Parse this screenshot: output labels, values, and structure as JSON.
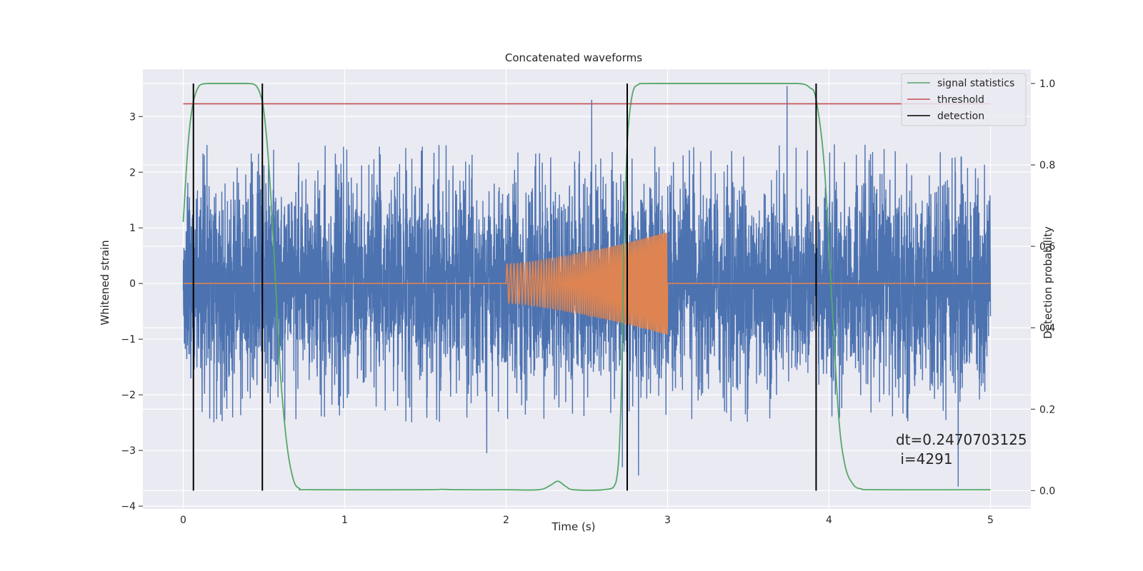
{
  "chart_data": {
    "type": "line",
    "title": "Concatenated waveforms",
    "xlabel": "Time (s)",
    "ylabel": "Whitened strain",
    "y2label": "Detection probability",
    "xlim": [
      -0.25,
      5.25
    ],
    "ylim": [
      -4.05,
      3.85
    ],
    "y2lim": [
      -0.045,
      1.035
    ],
    "x_ticks": [
      0,
      1,
      2,
      3,
      4,
      5
    ],
    "y_ticks": [
      -4,
      -3,
      -2,
      -1,
      0,
      1,
      2,
      3
    ],
    "y2_ticks": [
      0.0,
      0.2,
      0.4,
      0.6,
      0.8,
      1.0
    ],
    "x_tick_labels": [
      "0",
      "1",
      "2",
      "3",
      "4",
      "5"
    ],
    "y_tick_labels": [
      "−4",
      "−3",
      "−2",
      "−1",
      "0",
      "1",
      "2",
      "3"
    ],
    "y2_tick_labels": [
      "0.0",
      "0.2",
      "0.4",
      "0.6",
      "0.8",
      "1.0"
    ],
    "grid": true,
    "legend_position": "top-right",
    "colors": {
      "background": "#eaeaf2",
      "strain": "#4c72b0",
      "injection": "#dd8452",
      "signal_statistics": "#55a868",
      "threshold": "#c44e52",
      "detection": "#000000"
    },
    "series": [
      {
        "name": "",
        "role": "whitened-strain",
        "axis": "left",
        "x_range": [
          0,
          5
        ],
        "approx_amplitude_envelope": 2.5,
        "extreme_points": [
          {
            "x": 2.53,
            "y": 3.3
          },
          {
            "x": 3.74,
            "y": 3.55
          },
          {
            "x": 2.72,
            "y": -3.3
          },
          {
            "x": 2.82,
            "y": -3.45
          },
          {
            "x": 4.8,
            "y": -3.65
          },
          {
            "x": 1.88,
            "y": -3.05
          }
        ]
      },
      {
        "name": "",
        "role": "injected-waveform",
        "axis": "left",
        "baseline_x": [
          0,
          5
        ],
        "baseline_y": 0,
        "chirp_start": 2.0,
        "chirp_end": 3.0,
        "amplitude_start": 0.35,
        "amplitude_end": 0.92,
        "cycles": 80
      },
      {
        "name": "signal statistics",
        "axis": "right",
        "x": [
          0.0,
          0.03,
          0.06,
          0.1,
          0.15,
          0.2,
          0.3,
          0.4,
          0.45,
          0.48,
          0.5,
          0.53,
          0.56,
          0.6,
          0.64,
          0.68,
          0.72,
          0.8,
          1.5,
          1.6,
          1.7,
          2.0,
          2.2,
          2.27,
          2.32,
          2.37,
          2.42,
          2.6,
          2.68,
          2.71,
          2.73,
          2.75,
          2.78,
          2.82,
          2.9,
          3.5,
          3.8,
          3.88,
          3.92,
          3.97,
          4.02,
          4.06,
          4.1,
          4.15,
          4.2,
          4.3,
          5.0
        ],
        "y": [
          0.66,
          0.85,
          0.95,
          0.995,
          1.0,
          1.0,
          1.0,
          1.0,
          0.995,
          0.97,
          0.93,
          0.8,
          0.6,
          0.3,
          0.12,
          0.03,
          0.005,
          0.002,
          0.002,
          0.003,
          0.002,
          0.002,
          0.002,
          0.012,
          0.023,
          0.01,
          0.002,
          0.002,
          0.02,
          0.2,
          0.6,
          0.85,
          0.97,
          0.998,
          1.0,
          1.0,
          1.0,
          0.99,
          0.96,
          0.8,
          0.45,
          0.18,
          0.06,
          0.015,
          0.004,
          0.002,
          0.002
        ]
      },
      {
        "name": "threshold",
        "axis": "right",
        "x": [
          0,
          5
        ],
        "y": [
          0.95,
          0.95
        ]
      },
      {
        "name": "detection",
        "axis": "right",
        "type": "vlines",
        "x": [
          0.063,
          0.49,
          2.75,
          3.92
        ],
        "y_range": [
          0.0,
          1.0
        ]
      }
    ],
    "legend": [
      "signal statistics",
      "threshold",
      "detection"
    ],
    "annotation": {
      "line1": "dt=0.2470703125",
      "line2": " i=4291",
      "x": 4.5,
      "y": -3.1
    }
  }
}
